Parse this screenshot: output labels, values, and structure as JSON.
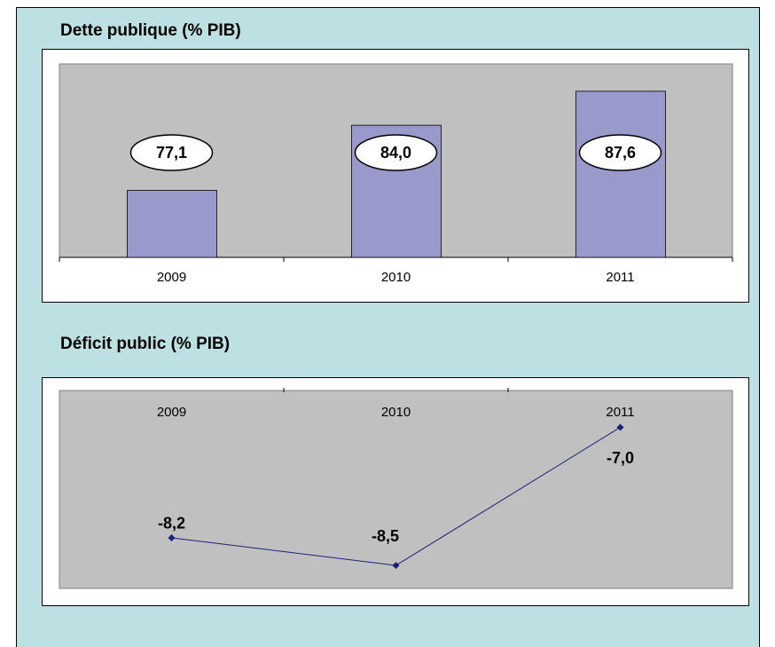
{
  "chart_data": [
    {
      "type": "bar",
      "title": "Dette publique (% PIB)",
      "categories": [
        "2009",
        "2010",
        "2011"
      ],
      "values": [
        77.1,
        84.0,
        87.6
      ],
      "value_labels": [
        "77,1",
        "84,0",
        "87,6"
      ],
      "color": "#9999cc",
      "ylim": [
        70,
        90.5
      ]
    },
    {
      "type": "line",
      "title": "Déficit public (% PIB)",
      "categories": [
        "2009",
        "2010",
        "2011"
      ],
      "values": [
        -8.2,
        -8.5,
        -7.0
      ],
      "value_labels": [
        "-8,2",
        "-8,5",
        "-7,0"
      ],
      "color": "#1f1f7a",
      "ylim": [
        -8.75,
        -6.6
      ]
    }
  ]
}
